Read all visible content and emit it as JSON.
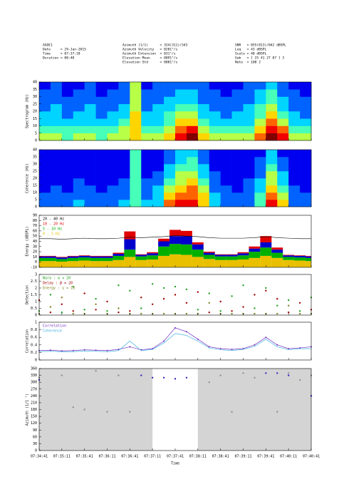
{
  "header": {
    "left": [
      "AGOE1",
      "Date     = 29-Jan-2015",
      "Time     = 07:37:18",
      "Duration = 00:40"
    ],
    "middle": [
      "Azimuth (1/1)      = 324(311)/343",
      "Azimuth Velocity   = 0281°/s",
      "Azimuth Extension  = 031°/s",
      "Elevation Mean     = 0091°/s",
      "Elevation Std      = 0001°/s"
    ],
    "right": [
      "SNR   = 055(013)/042 dBSPL",
      "Leq   = 43 dBSPL",
      "Scale = 40 dBSPL",
      "Gab   = [ 25 41 27 07 ] 3",
      "Note  = 100 2"
    ]
  },
  "chart_data": [
    {
      "type": "heatmap",
      "ylabel": "Spectrogram (Hz)",
      "xlim": [
        "07:34:41",
        "07:40:41"
      ],
      "ylim": [
        0,
        40
      ],
      "yticks": [
        0,
        5,
        10,
        15,
        20,
        25,
        30,
        35,
        40
      ],
      "zlim": [
        0,
        9
      ],
      "values": [
        [
          5,
          5,
          4,
          5,
          5,
          4,
          5,
          5,
          6,
          5,
          5,
          6,
          8,
          9,
          6,
          5,
          5,
          5,
          5,
          7,
          9,
          8,
          5,
          5
        ],
        [
          4,
          4,
          4,
          4,
          4,
          4,
          4,
          5,
          6,
          4,
          4,
          5,
          7,
          8,
          5,
          4,
          4,
          4,
          4,
          6,
          8,
          7,
          4,
          4
        ],
        [
          3,
          3,
          3,
          3,
          3,
          3,
          3,
          4,
          6,
          3,
          3,
          4,
          6,
          6,
          4,
          3,
          3,
          3,
          3,
          5,
          7,
          5,
          3,
          3
        ],
        [
          3,
          3,
          2,
          3,
          3,
          2,
          3,
          3,
          6,
          3,
          3,
          4,
          5,
          5,
          3,
          3,
          2,
          3,
          3,
          4,
          6,
          4,
          3,
          2
        ],
        [
          2,
          3,
          2,
          2,
          3,
          2,
          2,
          3,
          5,
          2,
          3,
          3,
          4,
          4,
          3,
          2,
          2,
          2,
          3,
          4,
          5,
          3,
          2,
          2
        ],
        [
          2,
          2,
          2,
          2,
          2,
          2,
          2,
          2,
          5,
          2,
          2,
          3,
          3,
          3,
          2,
          2,
          2,
          2,
          2,
          3,
          4,
          3,
          2,
          2
        ],
        [
          2,
          2,
          1,
          2,
          2,
          1,
          2,
          2,
          5,
          2,
          2,
          2,
          3,
          3,
          2,
          2,
          1,
          2,
          2,
          3,
          4,
          2,
          2,
          1
        ],
        [
          1,
          2,
          1,
          1,
          2,
          1,
          1,
          2,
          5,
          1,
          2,
          2,
          2,
          2,
          2,
          1,
          1,
          1,
          2,
          2,
          3,
          2,
          1,
          1
        ]
      ]
    },
    {
      "type": "heatmap",
      "ylabel": "Coherence (Hz)",
      "xlim": [
        "07:34:41",
        "07:40:41"
      ],
      "ylim": [
        0,
        40
      ],
      "yticks": [
        0,
        5,
        10,
        15,
        20,
        25,
        30,
        35,
        40
      ],
      "zlim": [
        0,
        9
      ],
      "values": [
        [
          2,
          2,
          2,
          3,
          2,
          2,
          2,
          3,
          4,
          3,
          3,
          7,
          8,
          8,
          6,
          3,
          2,
          2,
          2,
          4,
          8,
          6,
          2,
          2
        ],
        [
          2,
          2,
          2,
          2,
          2,
          2,
          2,
          2,
          4,
          2,
          3,
          6,
          7,
          7,
          6,
          3,
          2,
          2,
          2,
          4,
          7,
          5,
          2,
          2
        ],
        [
          1,
          2,
          1,
          2,
          2,
          1,
          2,
          2,
          4,
          2,
          3,
          5,
          6,
          7,
          5,
          2,
          2,
          1,
          2,
          3,
          6,
          4,
          2,
          1
        ],
        [
          1,
          1,
          1,
          2,
          1,
          1,
          1,
          2,
          4,
          2,
          2,
          4,
          5,
          6,
          4,
          2,
          1,
          1,
          2,
          3,
          5,
          3,
          1,
          1
        ],
        [
          1,
          1,
          1,
          1,
          1,
          1,
          1,
          1,
          4,
          1,
          2,
          3,
          5,
          5,
          3,
          2,
          1,
          1,
          1,
          2,
          5,
          3,
          1,
          1
        ],
        [
          1,
          1,
          1,
          1,
          1,
          1,
          1,
          1,
          4,
          1,
          1,
          3,
          4,
          4,
          3,
          1,
          1,
          1,
          1,
          2,
          4,
          2,
          1,
          1
        ],
        [
          1,
          1,
          1,
          1,
          1,
          1,
          1,
          1,
          4,
          1,
          1,
          2,
          3,
          4,
          2,
          1,
          1,
          1,
          1,
          2,
          3,
          2,
          1,
          1
        ],
        [
          1,
          1,
          1,
          1,
          1,
          1,
          1,
          1,
          4,
          1,
          1,
          2,
          3,
          3,
          2,
          1,
          1,
          1,
          1,
          1,
          3,
          1,
          1,
          1
        ]
      ]
    },
    {
      "type": "area",
      "ylabel": "Energy (dBSPL)",
      "xlim": [
        "07:34:41",
        "07:40:41"
      ],
      "ylim": [
        -10,
        90
      ],
      "yticks": [
        -10,
        0,
        10,
        20,
        30,
        40,
        50,
        60,
        70,
        80,
        90
      ],
      "x": [
        "07:34:41",
        "07:34:56",
        "07:35:11",
        "07:35:26",
        "07:35:41",
        "07:35:56",
        "07:36:11",
        "07:36:26",
        "07:36:41",
        "07:36:56",
        "07:37:11",
        "07:37:26",
        "07:37:41",
        "07:37:56",
        "07:38:11",
        "07:38:26",
        "07:38:41",
        "07:38:56",
        "07:39:11",
        "07:39:26",
        "07:39:41",
        "07:39:56",
        "07:40:11",
        "07:40:26",
        "07:40:41"
      ],
      "series": [
        {
          "name": "20 - 40 Hz",
          "color": "#000000",
          "kind": "line",
          "values": [
            45,
            45,
            44,
            45,
            46,
            45,
            45,
            46,
            48,
            47,
            48,
            49,
            51,
            50,
            49,
            47,
            46,
            46,
            46,
            47,
            49,
            47,
            46,
            45,
            45
          ]
        },
        {
          "name": "10 - 20 Hz",
          "color": "#e00000",
          "values": [
            1,
            1,
            1,
            1,
            1,
            1,
            1,
            2,
            15,
            1,
            2,
            5,
            12,
            10,
            4,
            2,
            1,
            1,
            2,
            4,
            12,
            4,
            1,
            1,
            1
          ]
        },
        {
          "color": "#0000cc",
          "values": [
            3,
            3,
            3,
            3,
            3,
            3,
            3,
            4,
            20,
            3,
            4,
            10,
            15,
            16,
            10,
            4,
            3,
            3,
            4,
            6,
            10,
            6,
            3,
            3,
            3
          ]
        },
        {
          "name": "5 - 10 Hz",
          "color": "#00b000",
          "values": [
            6,
            6,
            5,
            6,
            6,
            6,
            6,
            8,
            14,
            7,
            8,
            18,
            20,
            20,
            14,
            8,
            7,
            7,
            8,
            12,
            16,
            10,
            6,
            6,
            6
          ]
        },
        {
          "name": "0 - 5 Hz",
          "color": "#e8c000",
          "values": [
            12,
            12,
            11,
            12,
            13,
            12,
            12,
            14,
            20,
            14,
            15,
            22,
            25,
            24,
            20,
            16,
            14,
            14,
            15,
            18,
            22,
            18,
            14,
            13,
            12
          ]
        }
      ]
    },
    {
      "type": "scatter",
      "ylabel": "Detection",
      "xlim": [
        "07:34:41",
        "07:40:41"
      ],
      "ylim": [
        0,
        3
      ],
      "yticks": [
        0,
        0.5,
        1,
        1.5,
        2,
        2.5,
        3
      ],
      "x": [
        "07:34:41",
        "07:34:56",
        "07:35:11",
        "07:35:26",
        "07:35:41",
        "07:35:56",
        "07:36:11",
        "07:36:26",
        "07:36:41",
        "07:36:56",
        "07:37:11",
        "07:37:26",
        "07:37:41",
        "07:37:56",
        "07:38:11",
        "07:38:26",
        "07:38:41",
        "07:38:56",
        "07:39:11",
        "07:39:26",
        "07:39:41",
        "07:39:56",
        "07:40:11",
        "07:40:26",
        "07:40:41"
      ],
      "series": [
        {
          "name": "Nara : α = 20",
          "color": "#20a020",
          "values": [
            0.3,
            1.5,
            0.2,
            2.1,
            0.4,
            1.2,
            0.3,
            2.2,
            1.8,
            0.5,
            2.3,
            2.0,
            2.1,
            1.9,
            0.4,
            1.6,
            0.3,
            1.4,
            2.2,
            0.5,
            2.0,
            0.7,
            1.1,
            0.3,
            1.3
          ]
        },
        {
          "name": "Delay : β = 20",
          "color": "#a00000",
          "values": [
            1.1,
            0.2,
            0.8,
            0.3,
            1.6,
            0.4,
            1.0,
            0.2,
            0.3,
            1.3,
            0.8,
            1.2,
            1.5,
            0.9,
            1.7,
            0.2,
            1.0,
            0.3,
            0.6,
            1.5,
            1.8,
            1.2,
            0.2,
            0.9,
            0.4
          ]
        },
        {
          "name": "Energy : γ = 10",
          "color": "#808020",
          "values": [
            0.1,
            0.6,
            1.3,
            0.1,
            0.1,
            0.8,
            0.1,
            0.5,
            0.1,
            0.1,
            0.1,
            0.1,
            0.1,
            0.1,
            0.1,
            0.9,
            0.1,
            0.1,
            0.1,
            0.1,
            0.1,
            0.1,
            0.7,
            0.1,
            0.1
          ]
        }
      ]
    },
    {
      "type": "line",
      "ylabel": "Correlation",
      "xlim": [
        "07:34:41",
        "07:40:41"
      ],
      "ylim": [
        0,
        1
      ],
      "yticks": [
        0,
        0.2,
        0.4,
        0.6,
        0.8,
        1
      ],
      "x": [
        "07:34:41",
        "07:34:56",
        "07:35:11",
        "07:35:26",
        "07:35:41",
        "07:35:56",
        "07:36:11",
        "07:36:26",
        "07:36:41",
        "07:36:56",
        "07:37:11",
        "07:37:26",
        "07:37:41",
        "07:37:56",
        "07:38:11",
        "07:38:26",
        "07:38:41",
        "07:38:56",
        "07:39:11",
        "07:39:26",
        "07:39:41",
        "07:39:56",
        "07:40:11",
        "07:40:26",
        "07:40:41"
      ],
      "series": [
        {
          "name": "Correlation",
          "color": "#7030c0",
          "values": [
            0.25,
            0.26,
            0.24,
            0.25,
            0.27,
            0.26,
            0.25,
            0.28,
            0.35,
            0.27,
            0.3,
            0.5,
            0.85,
            0.75,
            0.55,
            0.35,
            0.3,
            0.28,
            0.3,
            0.4,
            0.6,
            0.4,
            0.3,
            0.32,
            0.35
          ]
        },
        {
          "name": "Coherence",
          "color": "#40b0e0",
          "values": [
            0.22,
            0.23,
            0.22,
            0.22,
            0.24,
            0.23,
            0.22,
            0.25,
            0.5,
            0.25,
            0.28,
            0.45,
            0.7,
            0.65,
            0.5,
            0.32,
            0.27,
            0.25,
            0.28,
            0.36,
            0.55,
            0.35,
            0.27,
            0.3,
            0.3
          ]
        }
      ]
    },
    {
      "type": "scatter",
      "ylabel": "Azimuth (1/1 °)",
      "xlabel": "Time",
      "xlim": [
        "07:34:41",
        "07:40:41"
      ],
      "ylim": [
        0,
        360
      ],
      "yticks": [
        0,
        30,
        60,
        90,
        120,
        150,
        180,
        210,
        240,
        270,
        300,
        330,
        360
      ],
      "xticks": [
        "07:34:41",
        "07:35:11",
        "07:35:41",
        "07:36:11",
        "07:36:41",
        "07:37:11",
        "07:37:41",
        "07:38:11",
        "07:38:41",
        "07:39:11",
        "07:39:41",
        "07:40:11",
        "07:40:41"
      ],
      "background": "#d4d4d4",
      "highlight": {
        "from": "07:37:11",
        "to": "07:38:11",
        "color": "#ffffff"
      },
      "x": [
        "07:34:41",
        "07:34:56",
        "07:35:11",
        "07:35:26",
        "07:35:41",
        "07:35:56",
        "07:36:11",
        "07:36:26",
        "07:36:41",
        "07:36:56",
        "07:37:11",
        "07:37:26",
        "07:37:41",
        "07:37:56",
        "07:38:11",
        "07:38:26",
        "07:38:41",
        "07:38:56",
        "07:39:11",
        "07:39:26",
        "07:39:41",
        "07:39:56",
        "07:40:11",
        "07:40:26",
        "07:40:41"
      ],
      "series": [
        {
          "color": "#909090",
          "values": [
            320,
            null,
            330,
            190,
            180,
            350,
            170,
            330,
            170,
            null,
            null,
            null,
            null,
            null,
            null,
            300,
            330,
            170,
            340,
            320,
            null,
            170,
            340,
            310,
            330
          ]
        },
        {
          "color": "#4020c0",
          "values": [
            310,
            null,
            null,
            null,
            null,
            null,
            null,
            null,
            null,
            330,
            320,
            320,
            315,
            320,
            null,
            null,
            null,
            null,
            null,
            null,
            340,
            340,
            330,
            null,
            240
          ]
        }
      ]
    }
  ]
}
